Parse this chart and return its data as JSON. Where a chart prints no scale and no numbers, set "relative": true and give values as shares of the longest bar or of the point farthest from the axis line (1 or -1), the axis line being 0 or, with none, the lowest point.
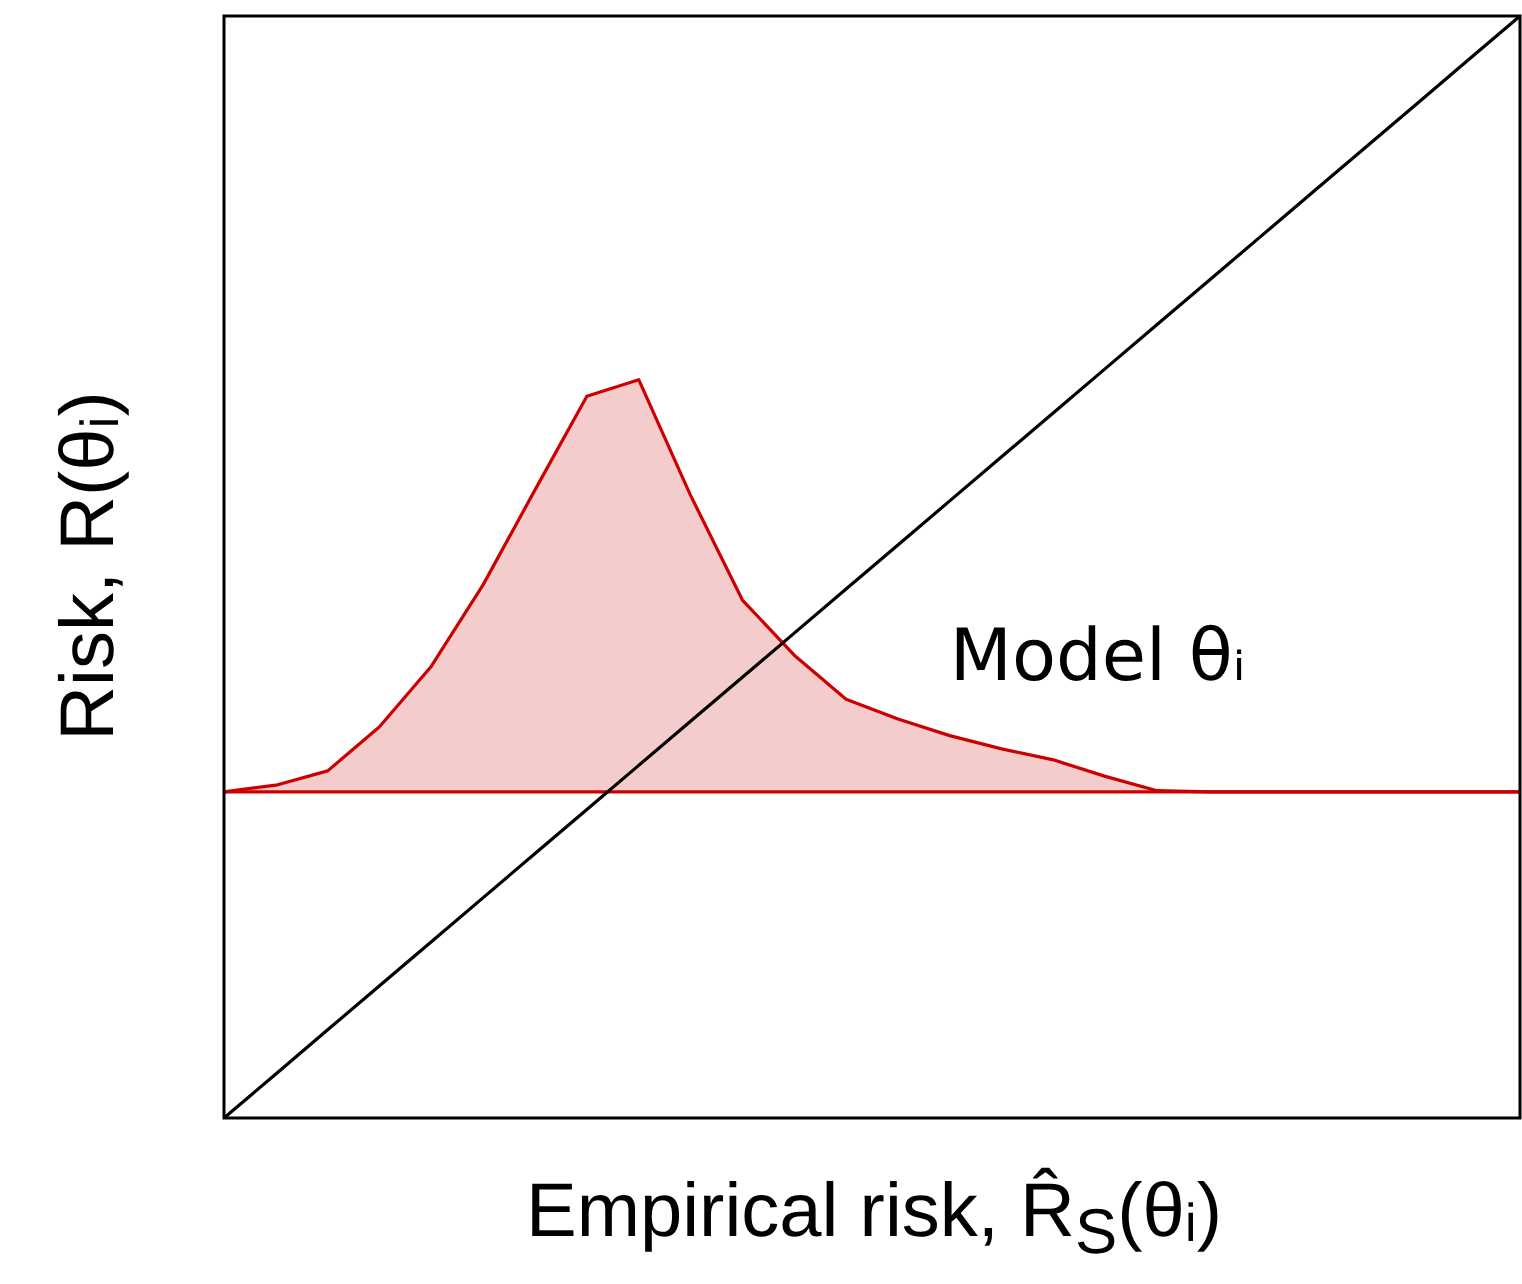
{
  "chart_data": {
    "type": "line",
    "relative": true,
    "xlabel": "Empirical risk, R̂$_{S}$(θᵢ)",
    "ylabel": "Risk, R(θᵢ)",
    "grid": false,
    "legend": false,
    "marker": "none",
    "line_style": "solid",
    "categories": [
      null,
      null,
      null,
      null,
      null,
      null,
      null,
      null,
      null,
      null,
      null,
      null,
      null,
      null,
      null,
      null,
      null,
      null,
      null,
      null,
      null,
      null,
      null,
      null,
      null,
      null
    ],
    "series": [
      {
        "type": "line",
        "color": "#000000",
        "values": [
          0,
          0.04,
          0.08,
          0.12,
          0.16,
          0.2,
          0.24,
          0.28,
          0.32,
          0.36,
          0.4,
          0.44,
          0.48,
          0.52,
          0.56,
          0.6,
          0.64,
          0.68,
          0.72,
          0.76,
          0.8,
          0.84,
          0.88,
          0.92,
          0.96,
          1
        ]
      },
      {
        "type": "line",
        "color": "#cc0000",
        "values": [
          0.296,
          0.296,
          0.296,
          0.296,
          0.296,
          0.296,
          0.296,
          0.296,
          0.296,
          0.296,
          0.296,
          0.296,
          0.296,
          0.296,
          0.296,
          0.296,
          0.296,
          0.296,
          0.296,
          0.296,
          0.296,
          0.296,
          0.296,
          0.296,
          0.296,
          0.296
        ]
      },
      {
        "type": "area",
        "name": "Model θᵢ",
        "color": "#cc0000",
        "values": [
          0.296,
          0.302,
          0.315,
          0.355,
          0.41,
          0.484,
          0.57,
          0.655,
          0.67,
          0.565,
          0.47,
          0.42,
          0.38,
          0.362,
          0.347,
          0.335,
          0.325,
          0.31,
          0.297,
          0.296,
          0.296,
          0.296,
          0.296,
          0.296,
          0.296,
          0.296
        ]
      }
    ]
  }
}
